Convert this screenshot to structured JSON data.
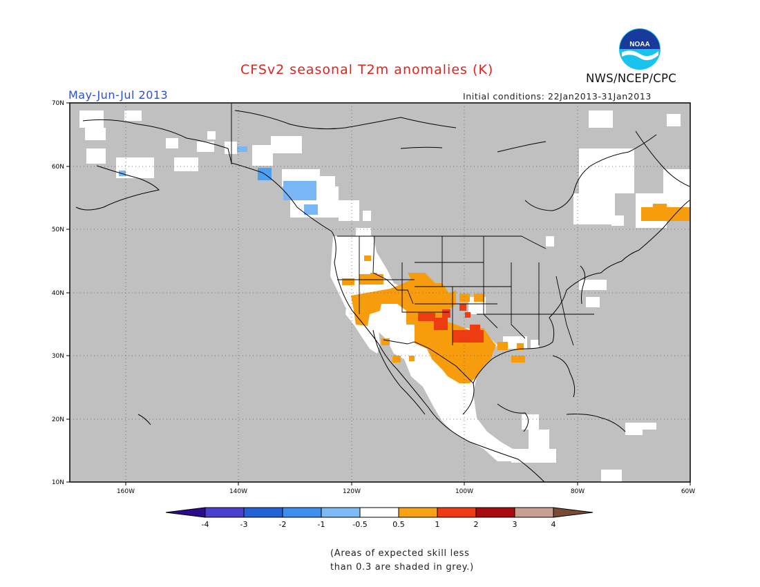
{
  "header": {
    "title": "CFSv2 seasonal T2m anomalies (K)",
    "period": "May-Jun-Jul 2013",
    "initial_conditions": "Initial conditions: 22Jan2013-31Jan2013",
    "agency": "NWS/NCEP/CPC",
    "logo_text": "NOAA"
  },
  "map": {
    "lat_labels": [
      "70N",
      "60N",
      "50N",
      "40N",
      "30N",
      "20N",
      "10N"
    ],
    "lon_labels": [
      "160W",
      "140W",
      "120W",
      "100W",
      "80W",
      "60W"
    ],
    "colors": {
      "skill_grey": "#c0c0c0",
      "neutral": "#ffffff",
      "warm_1": "#f79c0c",
      "warm_2": "#ee3c12",
      "cold_1": "#79b6f6",
      "cold_2": "#4ca0ee"
    }
  },
  "colorbar": {
    "tick_labels": [
      "-4",
      "-3",
      "-2",
      "-1",
      "-0.5",
      "0.5",
      "1",
      "2",
      "3",
      "4"
    ],
    "colors": [
      "#2a0c8c",
      "#4b3fd0",
      "#2262d6",
      "#3e8ef0",
      "#7bbaf5",
      "#ffffff",
      "#f7a114",
      "#ef3a12",
      "#a80c10",
      "#c8a090",
      "#7a4a35"
    ]
  },
  "footnote": {
    "line1": "(Areas of expected skill less",
    "line2": "than 0.3 are shaded in grey.)"
  }
}
